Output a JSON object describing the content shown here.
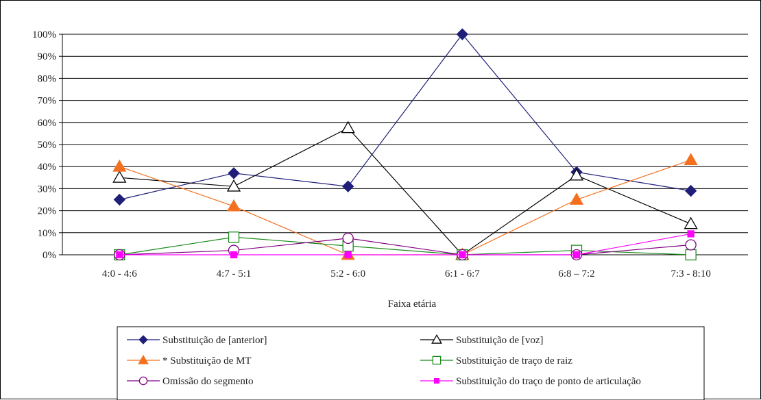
{
  "chart_data": {
    "type": "line",
    "title": "",
    "xlabel": "Faixa etária",
    "ylabel": "",
    "ylim": [
      0,
      1
    ],
    "y_ticks": [
      "0%",
      "10%",
      "20%",
      "30%",
      "40%",
      "50%",
      "60%",
      "70%",
      "80%",
      "90%",
      "100%"
    ],
    "categories": [
      "4:0 - 4:6",
      "4:7 - 5:1",
      "5:2 - 6:0",
      "6:1 - 6:7",
      "6:8 – 7:2",
      "7:3 - 8:10"
    ],
    "grid": true,
    "legend_position": "bottom",
    "series": [
      {
        "name": "Substituição de [anterior]",
        "color": "#1f1f7a",
        "marker": "diamond-filled",
        "values": [
          0.25,
          0.37,
          0.31,
          1.0,
          0.375,
          0.29
        ]
      },
      {
        "name": "Substituição de [voz]",
        "color": "#000000",
        "marker": "triangle-open",
        "values": [
          0.35,
          0.31,
          0.575,
          0.0,
          0.36,
          0.14
        ]
      },
      {
        "name": "* Substituição de MT",
        "color": "#f5701e",
        "marker": "triangle-filled",
        "values": [
          0.4,
          0.22,
          0.0,
          0.0,
          0.25,
          0.43
        ]
      },
      {
        "name": "Substituição de traço de raiz",
        "color": "#1a8a1a",
        "marker": "square-open",
        "values": [
          0.0,
          0.08,
          0.04,
          0.0,
          0.02,
          0.0
        ]
      },
      {
        "name": "Omissão do segmento",
        "color": "#800080",
        "marker": "circle-open",
        "values": [
          0.0,
          0.02,
          0.075,
          0.0,
          0.0,
          0.045
        ]
      },
      {
        "name": "Substituição do traço de ponto de articulação",
        "color": "#ff00ff",
        "marker": "square-filled",
        "values": [
          0.0,
          0.0,
          0.0,
          0.0,
          0.0,
          0.095
        ]
      }
    ]
  }
}
